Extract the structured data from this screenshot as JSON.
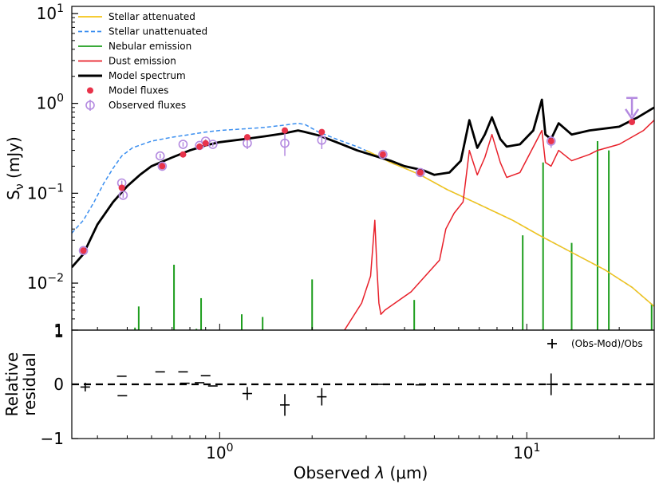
{
  "chart_data": [
    {
      "type": "line",
      "panel": "sed",
      "xscale": "log",
      "yscale": "log",
      "xlim": [
        0.33,
        26
      ],
      "ylim": [
        0.003,
        12
      ],
      "ylabel_main": "S",
      "ylabel_sub": "ν",
      "ylabel_unit": " (mJy)",
      "yticks": [
        {
          "value": 10,
          "mantissa": "10",
          "exp": "1"
        },
        {
          "value": 1,
          "mantissa": "10",
          "exp": "0"
        },
        {
          "value": 0.1,
          "mantissa": "10",
          "exp": "−1"
        },
        {
          "value": 0.01,
          "mantissa": "10",
          "exp": "−2"
        }
      ],
      "bottom_axis_label": "1",
      "legend_position": "top-left",
      "legend": [
        {
          "label": "Stellar attenuated",
          "kind": "line",
          "color": "#f5c518",
          "dash": ""
        },
        {
          "label": "Stellar unattenuated",
          "kind": "line",
          "color": "#3b8ff0",
          "dash": "5,3"
        },
        {
          "label": "Nebular emission",
          "kind": "line",
          "color": "#1e9e1e",
          "dash": ""
        },
        {
          "label": "Dust emission",
          "kind": "line",
          "color": "#e8202a",
          "dash": ""
        },
        {
          "label": "Model spectrum",
          "kind": "thick",
          "color": "#000000",
          "dash": ""
        },
        {
          "label": "Model fluxes",
          "kind": "dot",
          "color": "#e8334a",
          "dash": ""
        },
        {
          "label": "Observed fluxes",
          "kind": "circle",
          "color": "#b48ae0",
          "dash": ""
        }
      ],
      "series": [
        {
          "name": "Stellar unattenuated",
          "color": "#3b8ff0",
          "dash": "5,3",
          "width": 1.5,
          "x": [
            0.33,
            0.36,
            0.39,
            0.42,
            0.45,
            0.48,
            0.52,
            0.6,
            0.7,
            0.8,
            0.9,
            1.0,
            1.2,
            1.4,
            1.6,
            1.8,
            1.9,
            2.1,
            2.4,
            2.8,
            3.2,
            3.6,
            4.0,
            4.5,
            5.5,
            7.0,
            9.0,
            11.0,
            14.0,
            18.0,
            22.0,
            26.0
          ],
          "y": [
            0.036,
            0.05,
            0.08,
            0.13,
            0.19,
            0.26,
            0.32,
            0.38,
            0.42,
            0.45,
            0.48,
            0.5,
            0.52,
            0.54,
            0.57,
            0.6,
            0.58,
            0.48,
            0.4,
            0.33,
            0.27,
            0.22,
            0.19,
            0.16,
            0.11,
            0.075,
            0.05,
            0.034,
            0.022,
            0.014,
            0.009,
            0.0055
          ]
        },
        {
          "name": "Stellar attenuated",
          "color": "#f5c518",
          "dash": "",
          "width": 1.5,
          "x": [
            3.0,
            3.6,
            4.0,
            4.5,
            5.5,
            7.0,
            9.0,
            11.0,
            14.0,
            18.0,
            22.0,
            26.0
          ],
          "y": [
            0.3,
            0.22,
            0.19,
            0.16,
            0.11,
            0.075,
            0.05,
            0.034,
            0.022,
            0.014,
            0.009,
            0.0055
          ]
        },
        {
          "name": "Dust emission",
          "color": "#e8202a",
          "dash": "",
          "width": 1.5,
          "x": [
            2.55,
            2.9,
            3.1,
            3.2,
            3.25,
            3.3,
            3.35,
            3.45,
            4.2,
            5.2,
            5.45,
            5.8,
            6.2,
            6.5,
            6.9,
            7.3,
            7.7,
            8.2,
            8.6,
            9.5,
            11.2,
            11.5,
            12.0,
            12.7,
            14.0,
            16.0,
            17.0,
            20.0,
            24.0,
            26.0
          ],
          "y": [
            0.003,
            0.006,
            0.012,
            0.05,
            0.015,
            0.006,
            0.0045,
            0.005,
            0.008,
            0.018,
            0.04,
            0.06,
            0.08,
            0.3,
            0.16,
            0.25,
            0.45,
            0.22,
            0.15,
            0.17,
            0.5,
            0.22,
            0.2,
            0.3,
            0.23,
            0.27,
            0.3,
            0.35,
            0.5,
            0.65
          ]
        },
        {
          "name": "Model spectrum",
          "color": "#000000",
          "dash": "",
          "width": 2.8,
          "x": [
            0.33,
            0.36,
            0.4,
            0.45,
            0.5,
            0.55,
            0.6,
            0.7,
            0.8,
            0.9,
            1.0,
            1.2,
            1.4,
            1.6,
            1.8,
            1.9,
            2.1,
            2.4,
            2.8,
            3.2,
            3.6,
            4.0,
            4.6,
            5.0,
            5.6,
            6.1,
            6.5,
            6.9,
            7.3,
            7.7,
            8.2,
            8.6,
            9.5,
            10.5,
            11.2,
            11.5,
            12.0,
            12.7,
            14.0,
            16.0,
            20.0,
            23.0,
            26.0
          ],
          "y": [
            0.015,
            0.021,
            0.045,
            0.08,
            0.12,
            0.16,
            0.2,
            0.25,
            0.3,
            0.34,
            0.37,
            0.4,
            0.43,
            0.46,
            0.5,
            0.48,
            0.44,
            0.37,
            0.3,
            0.26,
            0.23,
            0.2,
            0.18,
            0.16,
            0.17,
            0.23,
            0.65,
            0.32,
            0.45,
            0.7,
            0.4,
            0.33,
            0.35,
            0.5,
            1.1,
            0.45,
            0.4,
            0.6,
            0.45,
            0.5,
            0.55,
            0.7,
            0.9
          ]
        }
      ],
      "nebular_lines": [
        {
          "x": 0.53,
          "y": 0.0032
        },
        {
          "x": 0.545,
          "y": 0.0055
        },
        {
          "x": 0.71,
          "y": 0.016
        },
        {
          "x": 0.84,
          "y": 0.0031
        },
        {
          "x": 0.87,
          "y": 0.0068
        },
        {
          "x": 1.18,
          "y": 0.0045
        },
        {
          "x": 1.38,
          "y": 0.0042
        },
        {
          "x": 2.0,
          "y": 0.011
        },
        {
          "x": 4.3,
          "y": 0.0065
        },
        {
          "x": 9.7,
          "y": 0.034
        },
        {
          "x": 11.3,
          "y": 0.22
        },
        {
          "x": 14.0,
          "y": 0.028
        },
        {
          "x": 17.0,
          "y": 0.38
        },
        {
          "x": 18.5,
          "y": 0.3
        },
        {
          "x": 25.5,
          "y": 0.0058
        }
      ],
      "observed_fluxes": [
        {
          "x": 0.36,
          "y": 0.023,
          "err": 0.0018
        },
        {
          "x": 0.48,
          "y": 0.13,
          "err": 0.008
        },
        {
          "x": 0.485,
          "y": 0.095,
          "err": 0.006
        },
        {
          "x": 0.64,
          "y": 0.26,
          "err": 0.015
        },
        {
          "x": 0.65,
          "y": 0.2,
          "err": 0.012
        },
        {
          "x": 0.76,
          "y": 0.35,
          "err": 0.02
        },
        {
          "x": 0.86,
          "y": 0.34,
          "err": 0.02
        },
        {
          "x": 0.9,
          "y": 0.38,
          "err": 0.02
        },
        {
          "x": 0.95,
          "y": 0.35,
          "err": 0.02
        },
        {
          "x": 1.23,
          "y": 0.36,
          "err": 0.05
        },
        {
          "x": 1.63,
          "y": 0.36,
          "err": 0.1
        },
        {
          "x": 2.15,
          "y": 0.39,
          "err": 0.08
        },
        {
          "x": 3.4,
          "y": 0.27,
          "err": 0.02
        },
        {
          "x": 4.5,
          "y": 0.17,
          "err": 0.012
        },
        {
          "x": 12.0,
          "y": 0.38,
          "err": 0.06
        }
      ],
      "upper_limit": {
        "x": 22.0,
        "y": 1.15
      },
      "model_fluxes": [
        {
          "x": 0.36,
          "y": 0.023
        },
        {
          "x": 0.48,
          "y": 0.115
        },
        {
          "x": 0.65,
          "y": 0.2
        },
        {
          "x": 0.76,
          "y": 0.27
        },
        {
          "x": 0.86,
          "y": 0.33
        },
        {
          "x": 0.9,
          "y": 0.36
        },
        {
          "x": 1.23,
          "y": 0.42
        },
        {
          "x": 1.63,
          "y": 0.5
        },
        {
          "x": 2.15,
          "y": 0.48
        },
        {
          "x": 3.4,
          "y": 0.27
        },
        {
          "x": 4.5,
          "y": 0.17
        },
        {
          "x": 12.0,
          "y": 0.38
        },
        {
          "x": 22.0,
          "y": 0.62
        }
      ]
    },
    {
      "type": "scatter",
      "panel": "residual",
      "xscale": "log",
      "xlim": [
        0.33,
        26
      ],
      "ylim": [
        -1,
        1
      ],
      "ylabel_line1": "Relative",
      "ylabel_line2": "residual",
      "xlabel_prefix": "Observed ",
      "xlabel_lambda": "λ",
      "xlabel_unit": " (μm)",
      "yticks": [
        {
          "value": 1,
          "label": "1"
        },
        {
          "value": 0,
          "label": "0"
        },
        {
          "value": -1,
          "label": "−1"
        }
      ],
      "xticks": [
        {
          "value": 1,
          "mantissa": "10",
          "exp": "0"
        },
        {
          "value": 10,
          "mantissa": "10",
          "exp": "1"
        }
      ],
      "legend_label": "(Obs-Mod)/Obs",
      "legend_position": "top-right",
      "zero_line": 0,
      "points": [
        {
          "x": 0.365,
          "y": -0.05,
          "yerr": 0.08
        },
        {
          "x": 0.48,
          "y": 0.15,
          "yerr": 0
        },
        {
          "x": 0.482,
          "y": -0.21,
          "yerr": 0
        },
        {
          "x": 0.64,
          "y": 0.23,
          "yerr": 0
        },
        {
          "x": 0.76,
          "y": 0.23,
          "yerr": 0
        },
        {
          "x": 0.77,
          "y": 0.02,
          "yerr": 0
        },
        {
          "x": 0.86,
          "y": 0.03,
          "yerr": 0
        },
        {
          "x": 0.9,
          "y": 0.16,
          "yerr": 0
        },
        {
          "x": 0.95,
          "y": -0.03,
          "yerr": 0
        },
        {
          "x": 1.23,
          "y": -0.17,
          "yerr": 0.12
        },
        {
          "x": 1.63,
          "y": -0.38,
          "yerr": 0.2
        },
        {
          "x": 2.15,
          "y": -0.23,
          "yerr": 0.16
        },
        {
          "x": 3.4,
          "y": 0.0,
          "yerr": 0
        },
        {
          "x": 4.5,
          "y": -0.01,
          "yerr": 0
        },
        {
          "x": 12.0,
          "y": 0.0,
          "yerr": 0.2
        }
      ]
    }
  ]
}
